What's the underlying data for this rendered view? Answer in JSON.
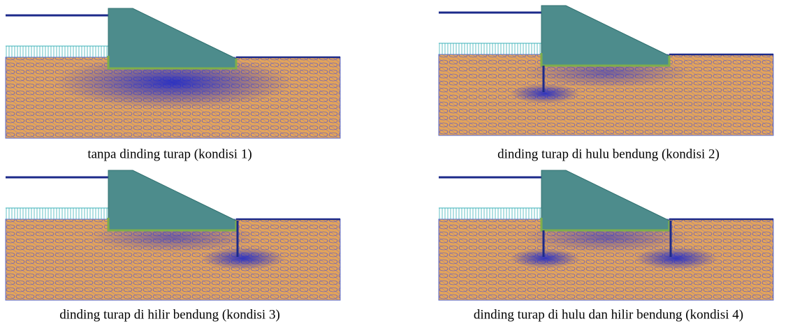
{
  "panels": [
    {
      "caption": "tanpa dinding turap (kondisi 1)"
    },
    {
      "caption": "dinding turap di hulu bendung (kondisi 2)"
    },
    {
      "caption": "dinding turap di hilir bendung (kondisi 3)"
    },
    {
      "caption": "dinding turap di hulu dan hilir bendung (kondisi 4)"
    }
  ]
}
